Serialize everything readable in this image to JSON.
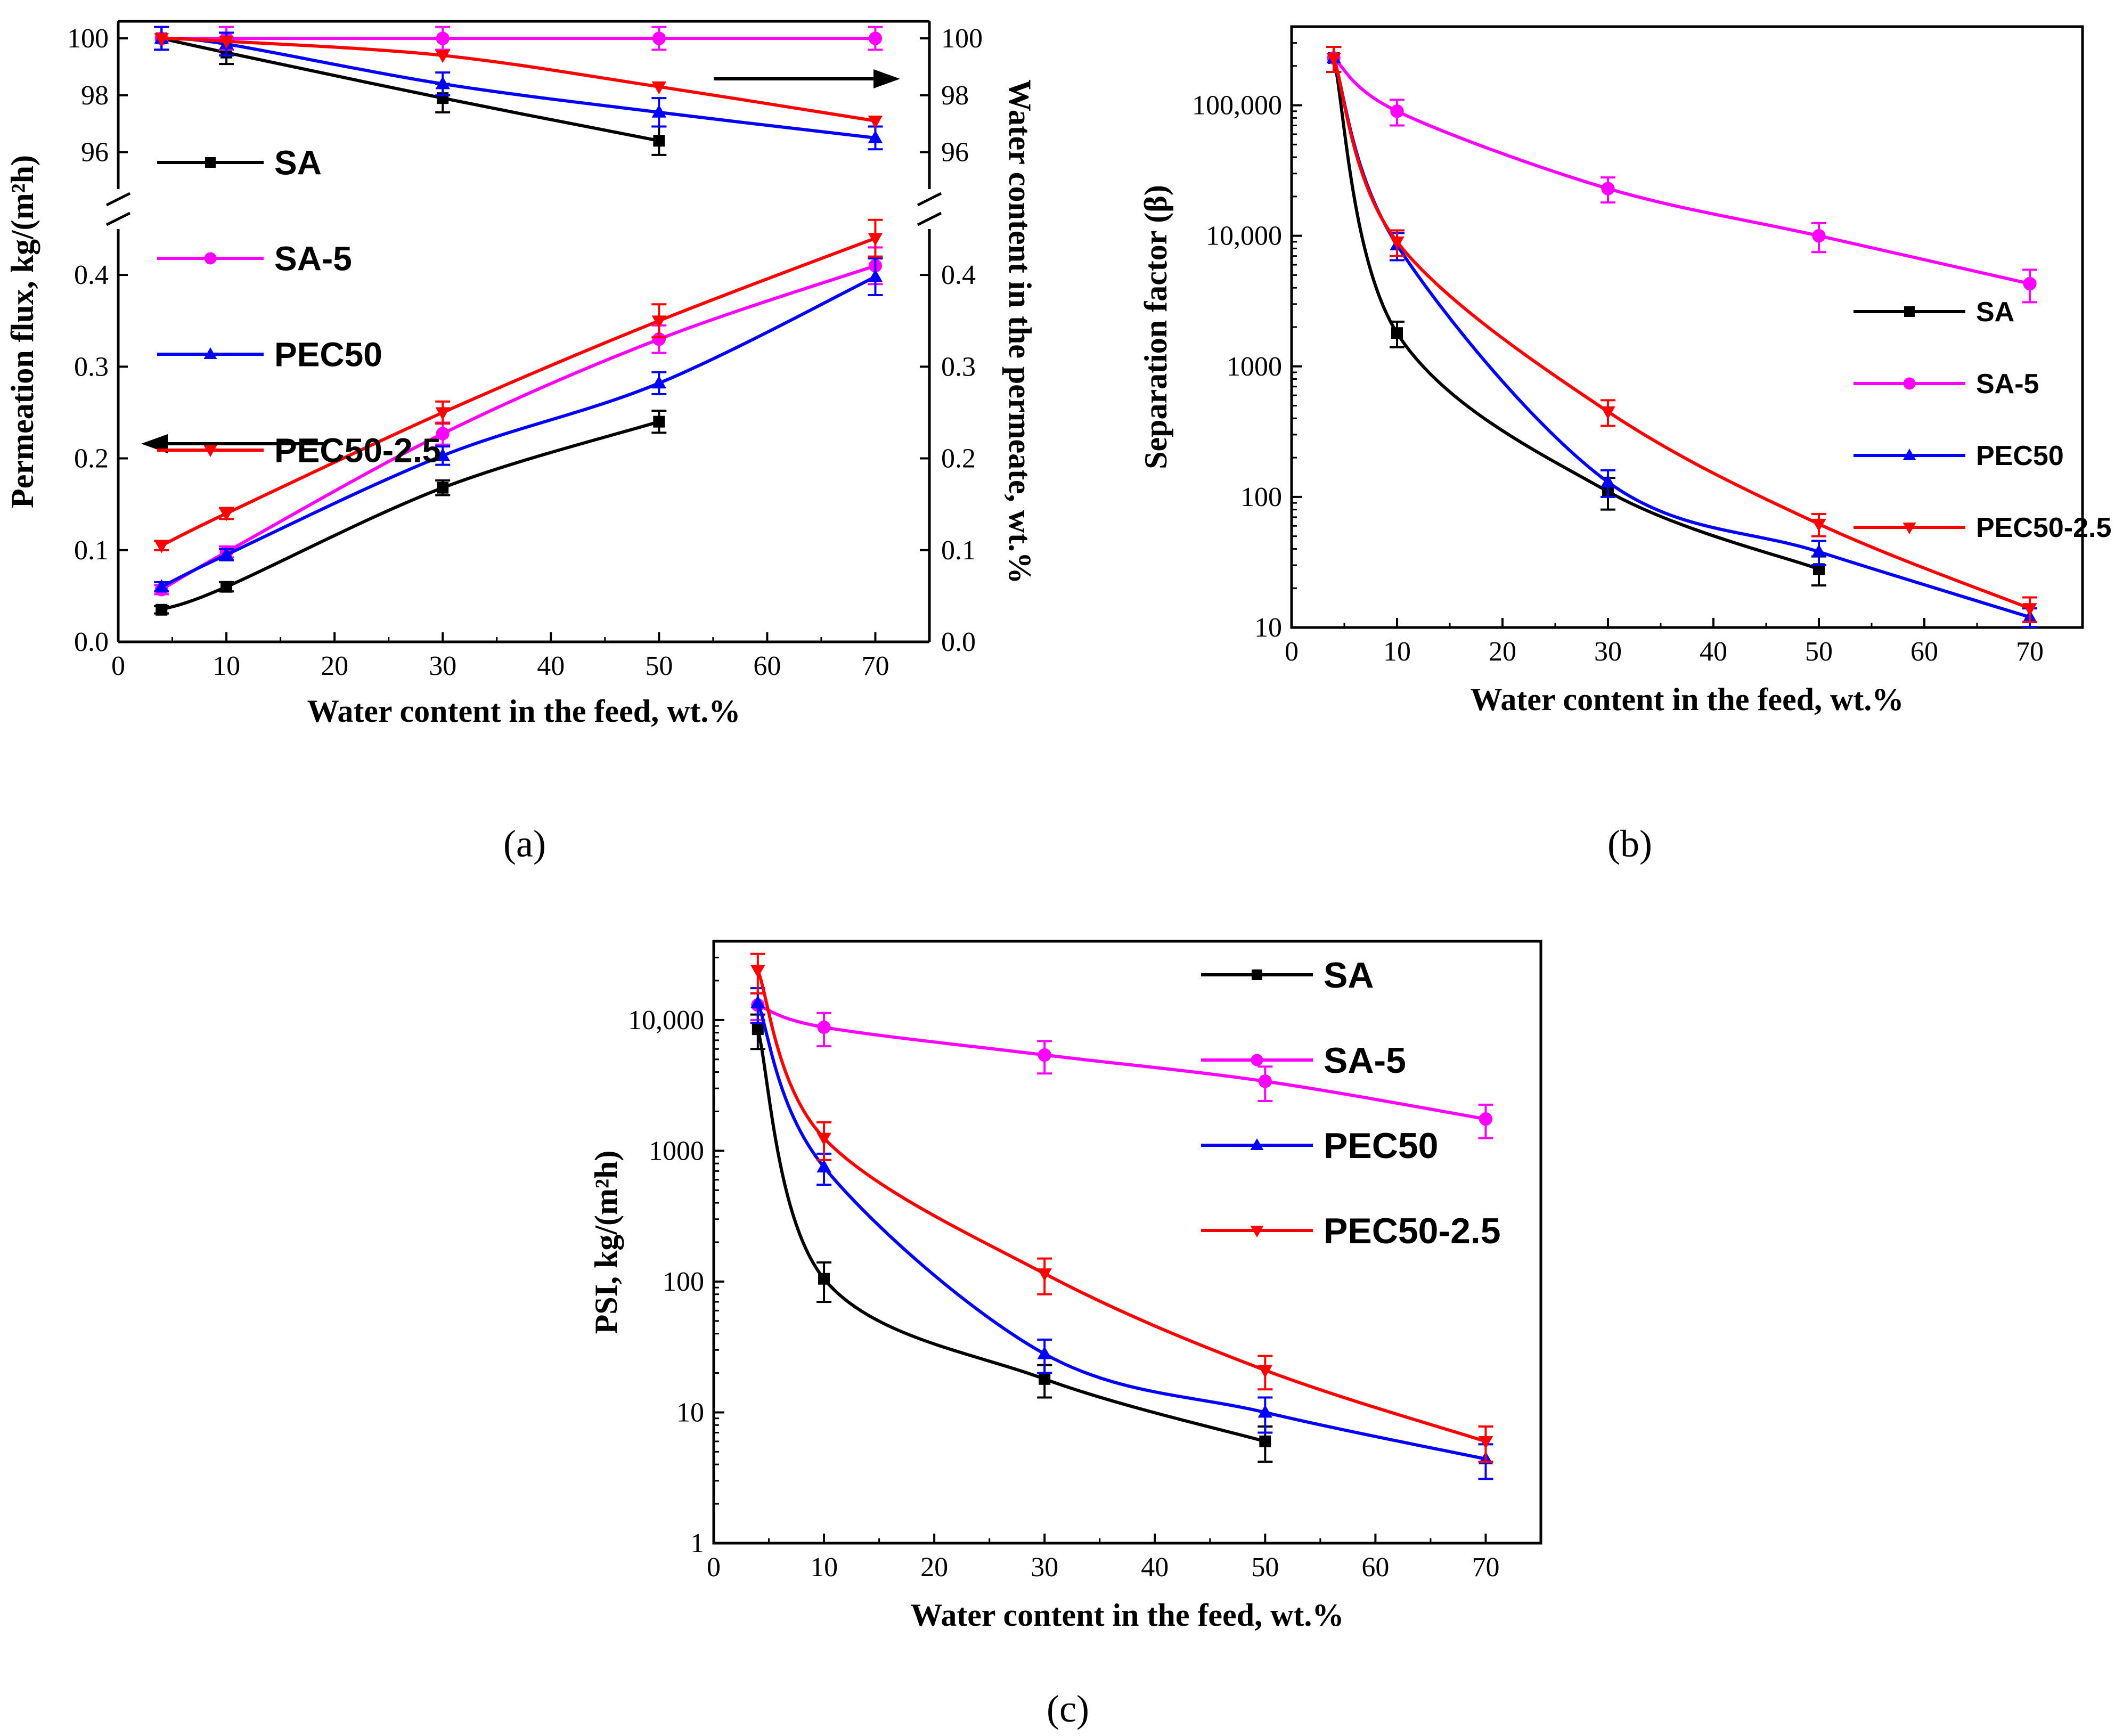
{
  "panel_labels": {
    "a": "(a)",
    "b": "(b)",
    "c": "(c)"
  },
  "colors": {
    "SA": "#000000",
    "SA-5": "#ff00ff",
    "PEC50": "#0000ff",
    "PEC50-2.5": "#ff0000"
  },
  "chart_data": [
    {
      "id": "a",
      "type": "line",
      "xlabel": "Water content in the feed, wt.%",
      "ylabel": "Permeation flux, kg/(m²h)",
      "ylabel_right": "Water content in the permeate, wt.%",
      "xlim": [
        0,
        75
      ],
      "x_ticks": [
        0,
        10,
        20,
        30,
        40,
        50,
        60,
        70
      ],
      "x_tick_labels": [
        "0",
        "10",
        "20",
        "30",
        "40",
        "50",
        "60",
        "70"
      ],
      "y_lower": {
        "ylim": [
          0,
          0.45
        ],
        "ticks": [
          0,
          0.1,
          0.2,
          0.3,
          0.4
        ],
        "tick_labels": [
          "0.0",
          "0.1",
          "0.2",
          "0.3",
          "0.4"
        ]
      },
      "y_upper": {
        "ylim": [
          94.7,
          100.6
        ],
        "ticks": [
          96,
          98,
          100
        ],
        "tick_labels": [
          "96",
          "98",
          "100"
        ]
      },
      "y_right_lower_tick_labels": [
        "0.0",
        "0.1",
        "0.2",
        "0.3",
        "0.4"
      ],
      "y_right_upper_tick_labels": [
        "96",
        "98",
        "100"
      ],
      "legend": [
        "SA",
        "SA-5",
        "PEC50",
        "PEC50-2.5"
      ],
      "flux_series": [
        {
          "name": "SA",
          "x": [
            4,
            10,
            30,
            50
          ],
          "values": [
            0.035,
            0.06,
            0.168,
            0.24
          ],
          "err": [
            0.004,
            0.005,
            0.008,
            0.012
          ]
        },
        {
          "name": "SA-5",
          "x": [
            4,
            10,
            30,
            50,
            70
          ],
          "values": [
            0.057,
            0.098,
            0.227,
            0.33,
            0.41
          ],
          "err": [
            0.005,
            0.006,
            0.012,
            0.015,
            0.02
          ]
        },
        {
          "name": "PEC50",
          "x": [
            4,
            10,
            30,
            50,
            70
          ],
          "values": [
            0.06,
            0.095,
            0.203,
            0.282,
            0.398
          ],
          "err": [
            0.005,
            0.006,
            0.01,
            0.012,
            0.02
          ]
        },
        {
          "name": "PEC50-2.5",
          "x": [
            4,
            10,
            30,
            50,
            70
          ],
          "values": [
            0.105,
            0.14,
            0.25,
            0.35,
            0.44
          ],
          "err": [
            0.005,
            0.006,
            0.012,
            0.018,
            0.02
          ]
        }
      ],
      "water_series": [
        {
          "name": "SA",
          "x": [
            4,
            10,
            30,
            50
          ],
          "values": [
            100,
            99.5,
            97.9,
            96.4
          ],
          "err": [
            0.4,
            0.4,
            0.5,
            0.5
          ]
        },
        {
          "name": "SA-5",
          "x": [
            4,
            10,
            30,
            50,
            70
          ],
          "values": [
            100,
            100,
            100,
            100,
            100
          ],
          "err": [
            0.4,
            0.4,
            0.4,
            0.4,
            0.4
          ]
        },
        {
          "name": "PEC50",
          "x": [
            4,
            10,
            30,
            50,
            70
          ],
          "values": [
            100,
            99.8,
            98.4,
            97.4,
            96.5
          ],
          "err": [
            0.4,
            0.4,
            0.4,
            0.5,
            0.4
          ]
        },
        {
          "name": "PEC50-2.5",
          "x": [
            4,
            10,
            30,
            50,
            70
          ],
          "values": [
            100,
            99.9,
            99.4,
            98.3,
            97.1
          ],
          "err": [
            0,
            0,
            0,
            0,
            0
          ]
        }
      ]
    },
    {
      "id": "b",
      "type": "line",
      "yscale": "log",
      "xlabel": "Water content in the feed, wt.%",
      "ylabel": "Separation factor (β)",
      "xlim": [
        0,
        75
      ],
      "x_ticks": [
        0,
        10,
        20,
        30,
        40,
        50,
        60,
        70
      ],
      "x_tick_labels": [
        "0",
        "10",
        "20",
        "30",
        "40",
        "50",
        "60",
        "70"
      ],
      "ylim": [
        10,
        400000
      ],
      "y_ticks": [
        10,
        100,
        1000,
        10000,
        100000
      ],
      "y_tick_labels": [
        "10",
        "100",
        "1000",
        "10,000",
        "100,000"
      ],
      "legend": [
        "SA",
        "SA-5",
        "PEC50",
        "PEC50-2.5"
      ],
      "series": [
        {
          "name": "SA",
          "x": [
            4,
            10,
            30,
            50
          ],
          "values": [
            230000,
            1800,
            110,
            28
          ],
          "err": [
            50000,
            400,
            30,
            7
          ]
        },
        {
          "name": "SA-5",
          "x": [
            4,
            10,
            30,
            50,
            70
          ],
          "values": [
            230000,
            90000,
            23000,
            10000,
            4300
          ],
          "err": [
            50000,
            20000,
            5000,
            2500,
            1200
          ]
        },
        {
          "name": "PEC50",
          "x": [
            4,
            10,
            30,
            50,
            70
          ],
          "values": [
            230000,
            8500,
            130,
            38,
            12
          ],
          "err": [
            50000,
            2000,
            30,
            8,
            2
          ]
        },
        {
          "name": "PEC50-2.5",
          "x": [
            4,
            10,
            30,
            50,
            70
          ],
          "values": [
            230000,
            9000,
            450,
            62,
            14
          ],
          "err": [
            50000,
            2000,
            100,
            12,
            3
          ]
        }
      ]
    },
    {
      "id": "c",
      "type": "line",
      "yscale": "log",
      "xlabel": "Water content in the feed, wt.%",
      "ylabel": "PSI, kg/(m²h)",
      "xlim": [
        0,
        75
      ],
      "x_ticks": [
        0,
        10,
        20,
        30,
        40,
        50,
        60,
        70
      ],
      "x_tick_labels": [
        "0",
        "10",
        "20",
        "30",
        "40",
        "50",
        "60",
        "70"
      ],
      "ylim": [
        1,
        40000
      ],
      "y_ticks": [
        1,
        10,
        100,
        1000,
        10000
      ],
      "y_tick_labels": [
        "1",
        "10",
        "100",
        "1000",
        "10,000"
      ],
      "legend": [
        "SA",
        "SA-5",
        "PEC50",
        "PEC50-2.5"
      ],
      "series": [
        {
          "name": "SA",
          "x": [
            4,
            10,
            30,
            50
          ],
          "values": [
            8500,
            105,
            18,
            6
          ],
          "err": [
            2500,
            35,
            5,
            1.8
          ]
        },
        {
          "name": "SA-5",
          "x": [
            4,
            10,
            30,
            50,
            70
          ],
          "values": [
            13000,
            8800,
            5400,
            3400,
            1750
          ],
          "err": [
            3000,
            2500,
            1500,
            1000,
            500
          ]
        },
        {
          "name": "PEC50",
          "x": [
            4,
            10,
            30,
            50,
            70
          ],
          "values": [
            13500,
            750,
            28,
            10,
            4.4
          ],
          "err": [
            4000,
            200,
            8,
            3,
            1.3
          ]
        },
        {
          "name": "PEC50-2.5",
          "x": [
            4,
            10,
            30,
            50,
            70
          ],
          "values": [
            24000,
            1250,
            115,
            21,
            6
          ],
          "err": [
            8000,
            400,
            35,
            6,
            1.8
          ]
        }
      ]
    }
  ]
}
